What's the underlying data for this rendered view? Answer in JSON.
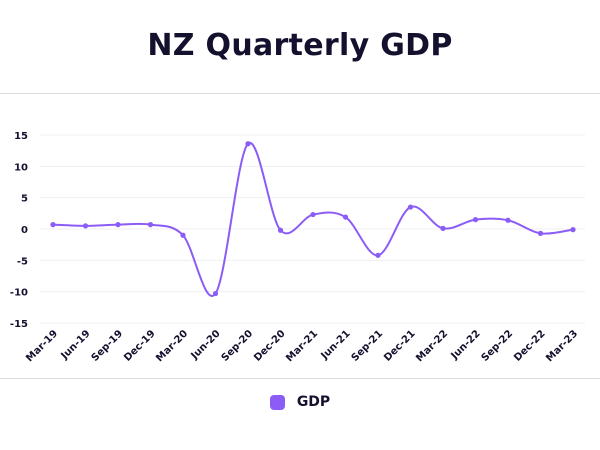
{
  "chart_data": {
    "type": "line",
    "title": "NZ Quarterly GDP",
    "xlabel": "",
    "ylabel": "",
    "categories": [
      "Mar-19",
      "Jun-19",
      "Sep-19",
      "Dec-19",
      "Mar-20",
      "Jun-20",
      "Sep-20",
      "Dec-20",
      "Mar-21",
      "Jun-21",
      "Sep-21",
      "Dec-21",
      "Mar-22",
      "Jun-22",
      "Sep-22",
      "Dec-22",
      "Mar-23"
    ],
    "series": [
      {
        "name": "GDP",
        "color": "#8b5cf6",
        "values": [
          0.7,
          0.5,
          0.7,
          0.7,
          -1.0,
          -10.3,
          13.6,
          -0.2,
          2.3,
          1.9,
          -4.2,
          3.5,
          0.1,
          1.5,
          1.4,
          -0.7,
          -0.1
        ]
      }
    ],
    "ylim": [
      -15,
      15
    ],
    "yticks": [
      15,
      10,
      5,
      0,
      -5,
      -10,
      -15
    ],
    "grid": true,
    "legend_position": "bottom"
  }
}
